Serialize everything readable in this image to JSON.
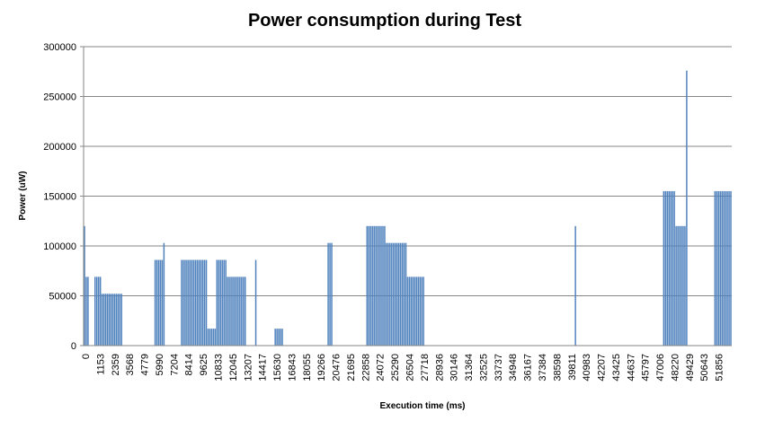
{
  "chart_data": {
    "type": "bar",
    "title": "Power consumption during Test",
    "xlabel": "Execution time (ms)",
    "ylabel": "Power (uW)",
    "ylim": [
      0,
      300000
    ],
    "yticks": [
      "0",
      "50000",
      "100000",
      "150000",
      "200000",
      "250000",
      "300000"
    ],
    "grid": true,
    "legend": "none",
    "bar_color": "#4f81bd",
    "x_tick_labels": [
      "0",
      "1153",
      "2359",
      "3568",
      "4779",
      "5990",
      "7204",
      "8414",
      "9625",
      "10833",
      "12045",
      "13207",
      "14417",
      "15630",
      "16843",
      "18055",
      "19266",
      "20476",
      "21695",
      "22858",
      "24072",
      "25290",
      "26504",
      "27718",
      "28936",
      "30146",
      "31364",
      "32525",
      "33737",
      "34948",
      "36167",
      "37384",
      "38598",
      "39811",
      "40983",
      "42207",
      "43425",
      "44637",
      "45797",
      "47006",
      "48220",
      "49429",
      "50643",
      "51856"
    ],
    "values": [
      120000,
      69000,
      69000,
      0,
      0,
      0,
      69000,
      69000,
      69000,
      69000,
      52000,
      52000,
      52000,
      52000,
      52000,
      52000,
      52000,
      52000,
      52000,
      52000,
      52000,
      52000,
      0,
      0,
      0,
      0,
      0,
      0,
      0,
      0,
      0,
      0,
      0,
      0,
      0,
      0,
      0,
      0,
      0,
      0,
      86000,
      86000,
      86000,
      86000,
      86000,
      103000,
      0,
      0,
      0,
      0,
      0,
      0,
      0,
      0,
      0,
      86000,
      86000,
      86000,
      86000,
      86000,
      86000,
      86000,
      86000,
      86000,
      86000,
      86000,
      86000,
      86000,
      86000,
      86000,
      17000,
      17000,
      17000,
      17000,
      17000,
      86000,
      86000,
      86000,
      86000,
      86000,
      86000,
      69000,
      69000,
      69000,
      69000,
      69000,
      69000,
      69000,
      69000,
      69000,
      69000,
      69000,
      0,
      0,
      0,
      0,
      0,
      86000,
      0,
      0,
      0,
      0,
      0,
      0,
      0,
      0,
      0,
      0,
      17000,
      17000,
      17000,
      17000,
      17000,
      0,
      0,
      0,
      0,
      0,
      0,
      0,
      0,
      0,
      0,
      0,
      0,
      0,
      0,
      0,
      0,
      0,
      0,
      0,
      0,
      0,
      0,
      0,
      0,
      0,
      103000,
      103000,
      103000,
      0,
      0,
      0,
      0,
      0,
      0,
      0,
      0,
      0,
      0,
      0,
      0,
      0,
      0,
      0,
      0,
      0,
      0,
      0,
      120000,
      120000,
      120000,
      120000,
      120000,
      120000,
      120000,
      120000,
      120000,
      120000,
      120000,
      103000,
      103000,
      103000,
      103000,
      103000,
      103000,
      103000,
      103000,
      103000,
      103000,
      103000,
      103000,
      69000,
      69000,
      69000,
      69000,
      69000,
      69000,
      69000,
      69000,
      69000,
      69000,
      0,
      0,
      0,
      0,
      0,
      0,
      0,
      0,
      0,
      0,
      0,
      0,
      0,
      0,
      0,
      0,
      0,
      0,
      0,
      0,
      0,
      0,
      0,
      0,
      0,
      0,
      0,
      0,
      0,
      0,
      0,
      0,
      0,
      0,
      0,
      0,
      0,
      0,
      0,
      0,
      0,
      0,
      0,
      0,
      0,
      0,
      0,
      0,
      0,
      0,
      0,
      0,
      0,
      0,
      0,
      0,
      0,
      0,
      0,
      0,
      0,
      0,
      0,
      0,
      0,
      0,
      0,
      0,
      0,
      0,
      0,
      0,
      0,
      0,
      0,
      0,
      0,
      0,
      0,
      0,
      0,
      0,
      0,
      0,
      0,
      120000,
      0,
      0,
      0,
      0,
      0,
      0,
      0,
      0,
      0,
      0,
      0,
      0,
      0,
      0,
      0,
      0,
      0,
      0,
      0,
      0,
      0,
      0,
      0,
      0,
      0,
      0,
      0,
      0,
      0,
      0,
      0,
      0,
      0,
      0,
      0,
      0,
      0,
      0,
      0,
      0,
      0,
      0,
      0,
      0,
      0,
      0,
      0,
      0,
      0,
      155000,
      155000,
      155000,
      155000,
      155000,
      155000,
      155000,
      120000,
      120000,
      120000,
      120000,
      120000,
      120000,
      276000,
      0,
      0,
      0,
      0,
      0,
      0,
      0,
      0,
      0,
      0,
      0,
      0,
      0,
      0,
      0,
      155000,
      155000,
      155000,
      155000,
      155000,
      155000,
      155000,
      155000,
      155000,
      155000
    ]
  }
}
